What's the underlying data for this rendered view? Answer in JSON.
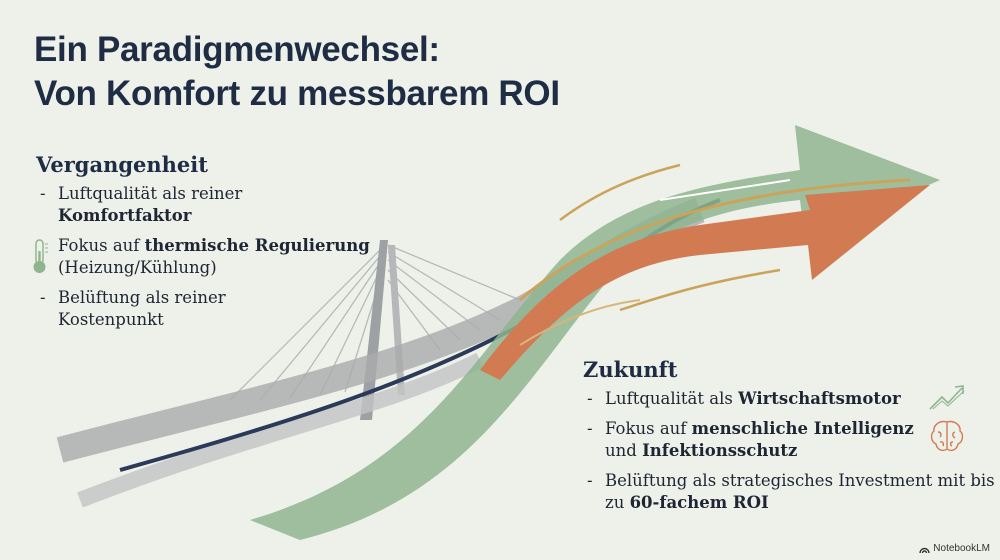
{
  "title": {
    "line1": "Ein Paradigmenwechsel:",
    "line2": "Von Komfort zu messbarem ROI"
  },
  "past": {
    "heading": "Vergangenheit",
    "items": [
      {
        "prefix": "-",
        "a": "Luftqualität als reiner",
        "bold": "Komfortfaktor",
        "c": ""
      },
      {
        "prefix": "",
        "a": "Fokus auf",
        "bold": "thermische Regulierung",
        "c": "(Heizung/Kühlung)",
        "icon": "thermometer-icon"
      },
      {
        "prefix": "-",
        "a": "Belüftung als reiner Kostenpunkt",
        "bold": "",
        "c": ""
      }
    ]
  },
  "future": {
    "heading": "Zukunft",
    "items": [
      {
        "prefix": "-",
        "a": "Luftqualität als",
        "bold": "Wirtschaftsmotor",
        "c": "",
        "icon": "trend-up-icon"
      },
      {
        "prefix": "-",
        "a": "Fokus auf",
        "bold": "menschliche Intelligenz",
        "c": "und",
        "bold2": "Infektionsschutz",
        "icon": "brain-icon"
      },
      {
        "prefix": "-",
        "a": "Belüftung als strategisches Investment mit bis zu",
        "bold": "60-fachem ROI",
        "c": ""
      }
    ]
  },
  "branding": {
    "logo": "NotebookLM"
  },
  "colors": {
    "navy": "#1f2d44",
    "green": "#8fb58f",
    "orange": "#d27a52",
    "gold": "#c9a45a",
    "bridge": "#a4a6a8"
  }
}
